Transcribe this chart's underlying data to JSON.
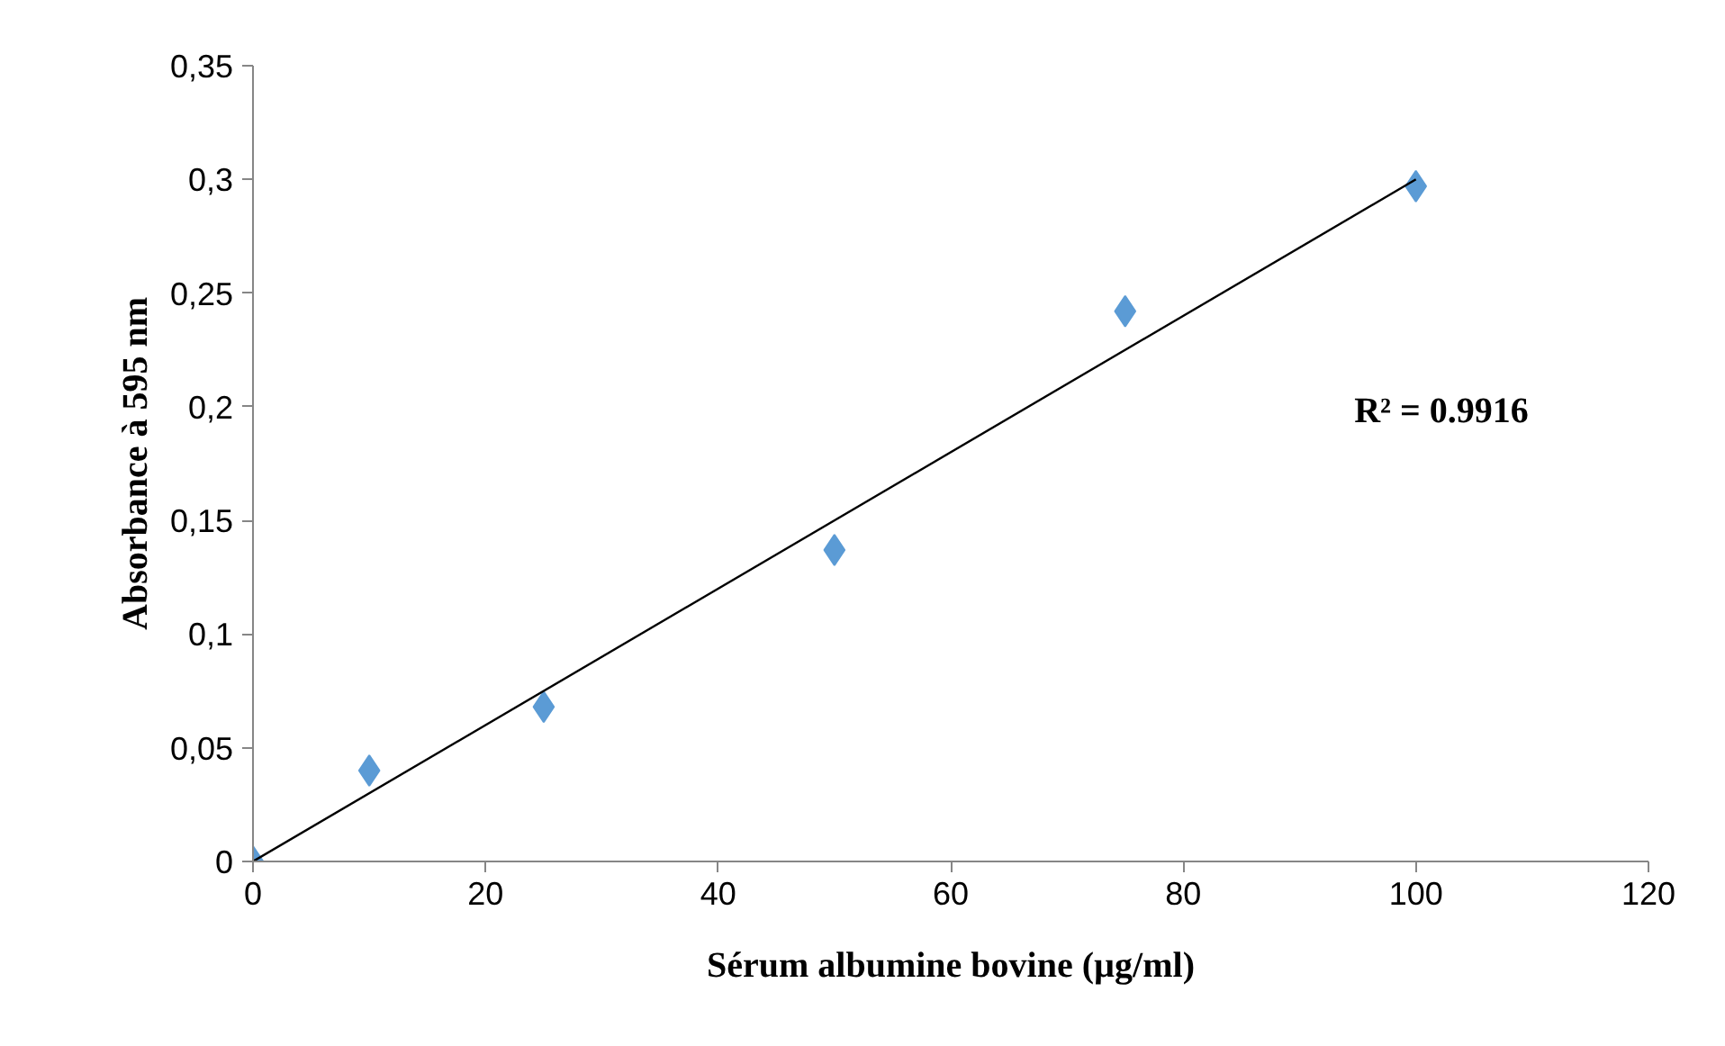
{
  "chart_data": {
    "type": "scatter",
    "xlabel": "Sérum albumine bovine (µg/ml)",
    "ylabel": "Absorbance à 595 nm",
    "series": [
      {
        "color": "#5b9bd5",
        "marker": "diamond",
        "x": [
          0,
          10,
          25,
          50,
          75,
          100
        ],
        "values": [
          0,
          0.04,
          0.068,
          0.137,
          0.242,
          0.297
        ]
      },
      {
        "type": "line",
        "color": "#000000",
        "x": [
          0,
          100
        ],
        "values": [
          0,
          0.3
        ],
        "marker": "none",
        "line_style": "solid"
      }
    ],
    "annotations": [
      "R² = 0.9916"
    ],
    "xlim": [
      0,
      120
    ],
    "xticks": [
      0,
      20,
      40,
      60,
      80,
      100,
      120
    ],
    "ylim": [
      0,
      0.35
    ],
    "yticks": [
      {
        "value": 0,
        "label": "0"
      },
      {
        "value": 0.05,
        "label": "0,05"
      },
      {
        "value": 0.1,
        "label": "0,1"
      },
      {
        "value": 0.15,
        "label": "0,15"
      },
      {
        "value": 0.2,
        "label": "0,2"
      },
      {
        "value": 0.25,
        "label": "0,25"
      },
      {
        "value": 0.3,
        "label": "0,3"
      },
      {
        "value": 0.35,
        "label": "0,35"
      }
    ],
    "grid": false
  }
}
